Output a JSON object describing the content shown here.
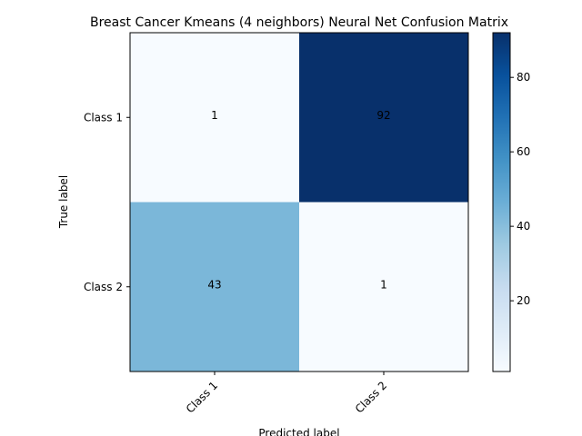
{
  "chart_data": {
    "type": "heatmap",
    "title": "Breast Cancer Kmeans (4 neighbors) Neural Net Confusion Matrix",
    "xlabel": "Predicted label",
    "ylabel": "True label",
    "x_categories": [
      "Class 1",
      "Class 2"
    ],
    "y_categories": [
      "Class 1",
      "Class 2"
    ],
    "values": [
      [
        1,
        92
      ],
      [
        43,
        1
      ]
    ],
    "colormap": "Blues",
    "colorbar_range": [
      1,
      92
    ],
    "colorbar_ticks": [
      20,
      40,
      60,
      80
    ],
    "colormap_stops": [
      "#f7fbff",
      "#deebf7",
      "#c6dbef",
      "#9ecae1",
      "#6baed6",
      "#4292c6",
      "#2171b5",
      "#08519c",
      "#08306b"
    ]
  }
}
